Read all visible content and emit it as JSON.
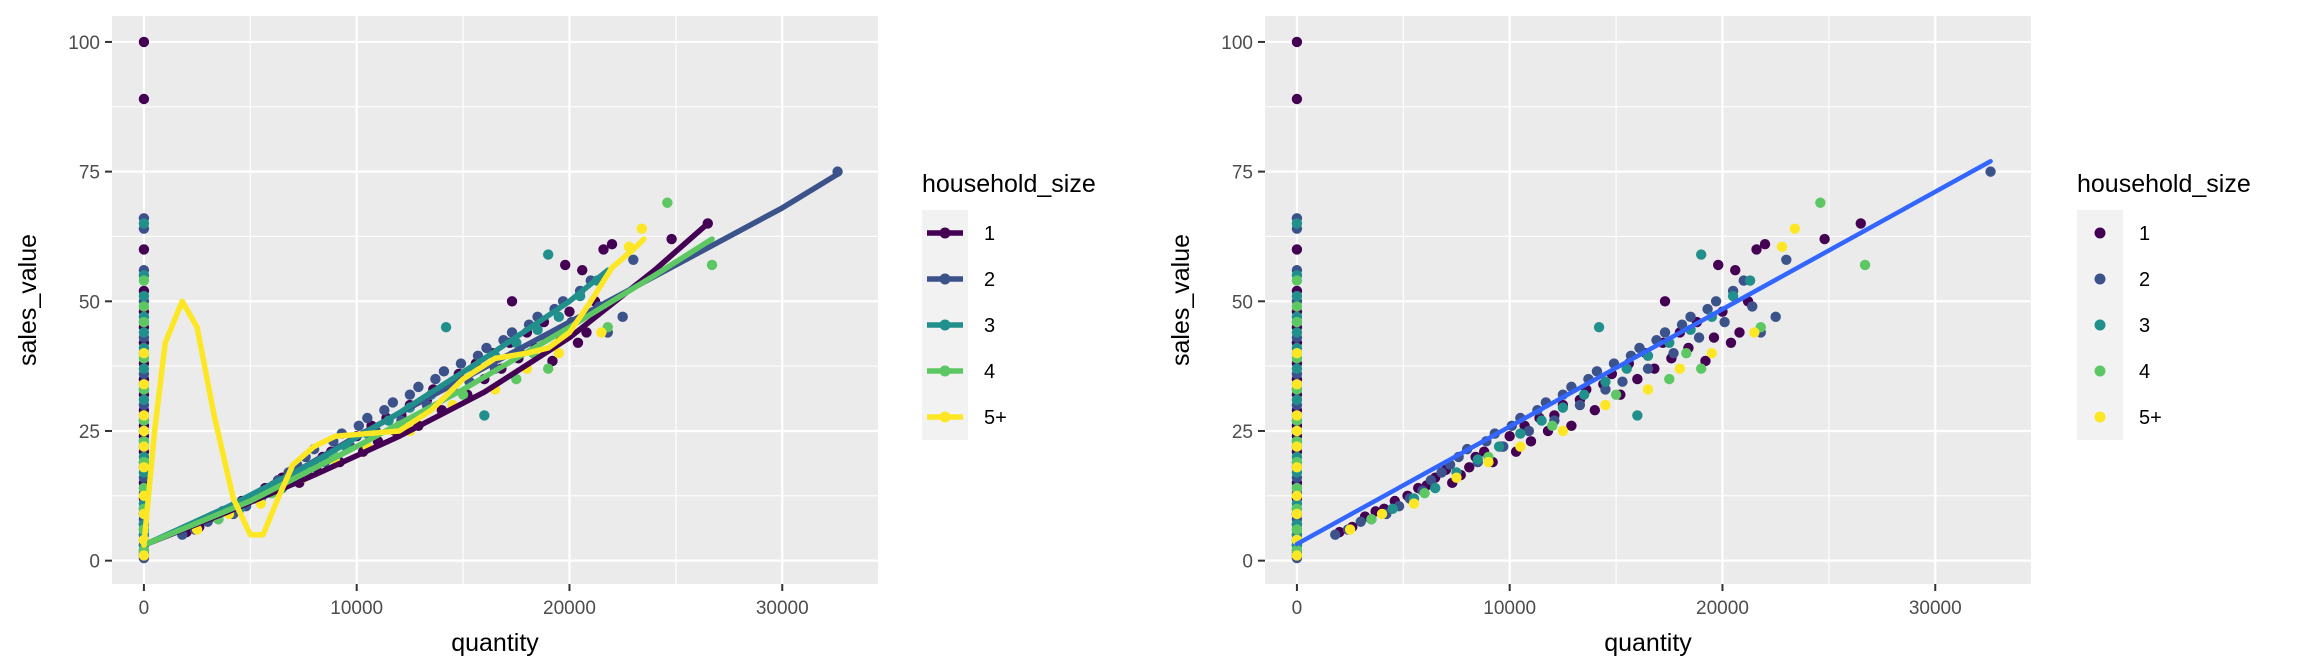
{
  "colors": {
    "panel": "#EBEBEB",
    "grid": "#FFFFFF",
    "tick": "#333333",
    "fit_line": "#3366FF",
    "legend_key_bg": "#F2F2F2",
    "groups": {
      "1": "#440154",
      "2": "#3B528B",
      "3": "#21908C",
      "4": "#5DC863",
      "5+": "#FDE725"
    }
  },
  "chart_data": [
    {
      "type": "scatter",
      "title": "",
      "xlabel": "quantity",
      "ylabel": "sales_value",
      "xlim": [
        -1500,
        34500
      ],
      "ylim": [
        -4.5,
        105
      ],
      "x_ticks": [
        0,
        10000,
        20000,
        30000
      ],
      "x_tick_labels": [
        "0",
        "10000",
        "20000",
        "30000"
      ],
      "y_ticks": [
        0,
        25,
        50,
        75,
        100
      ],
      "y_tick_labels": [
        "0",
        "25",
        "50",
        "75",
        "100"
      ],
      "grid": true,
      "legend": {
        "title": "household_size",
        "placement": "right",
        "keys": "point-and-line",
        "entries": [
          "1",
          "2",
          "3",
          "4",
          "5+"
        ]
      },
      "series": [
        {
          "name": "1",
          "lines": [
            [
              0,
              3
            ],
            [
              4000,
              9.5
            ],
            [
              8000,
              16.5
            ],
            [
              12000,
              24
            ],
            [
              16000,
              32.5
            ],
            [
              20000,
              43
            ],
            [
              24000,
              56
            ],
            [
              26500,
              65
            ]
          ]
        },
        {
          "name": "2",
          "lines": [
            [
              0,
              3
            ],
            [
              5000,
              12
            ],
            [
              10000,
              24
            ],
            [
              15000,
              35
            ],
            [
              20000,
              46
            ],
            [
              25000,
              57
            ],
            [
              30000,
              68
            ],
            [
              32600,
              74.5
            ]
          ]
        },
        {
          "name": "3",
          "lines": [
            [
              0,
              3
            ],
            [
              4000,
              10.5
            ],
            [
              8000,
              19
            ],
            [
              12000,
              28.5
            ],
            [
              16000,
              39
            ],
            [
              20000,
              50
            ],
            [
              21800,
              56
            ]
          ]
        },
        {
          "name": "4",
          "lines": [
            [
              0,
              3
            ],
            [
              5000,
              11.5
            ],
            [
              10000,
              22
            ],
            [
              15000,
              33
            ],
            [
              20000,
              45
            ],
            [
              24000,
              55
            ],
            [
              26700,
              62
            ]
          ]
        },
        {
          "name": "5+",
          "lines": [
            [
              0,
              3
            ],
            [
              500,
              25
            ],
            [
              1000,
              42
            ],
            [
              1800,
              50
            ],
            [
              2500,
              45
            ],
            [
              3300,
              28
            ],
            [
              4200,
              12
            ],
            [
              5000,
              5
            ],
            [
              5600,
              5
            ],
            [
              6300,
              12
            ],
            [
              7000,
              18.5
            ],
            [
              8000,
              22
            ],
            [
              9000,
              24
            ],
            [
              10500,
              24.5
            ],
            [
              12000,
              25
            ],
            [
              13500,
              29
            ],
            [
              15000,
              35
            ],
            [
              16500,
              39
            ],
            [
              18000,
              40
            ],
            [
              19000,
              41
            ],
            [
              20000,
              44
            ],
            [
              21000,
              50
            ],
            [
              22000,
              56.5
            ],
            [
              23000,
              60
            ],
            [
              23500,
              62
            ]
          ]
        }
      ]
    },
    {
      "type": "scatter",
      "title": "",
      "xlabel": "quantity",
      "ylabel": "sales_value",
      "xlim": [
        -1500,
        34500
      ],
      "ylim": [
        -4.5,
        105
      ],
      "x_ticks": [
        0,
        10000,
        20000,
        30000
      ],
      "x_tick_labels": [
        "0",
        "10000",
        "20000",
        "30000"
      ],
      "y_ticks": [
        0,
        25,
        50,
        75,
        100
      ],
      "y_tick_labels": [
        "0",
        "25",
        "50",
        "75",
        "100"
      ],
      "grid": true,
      "legend": {
        "title": "household_size",
        "placement": "right",
        "keys": "point",
        "entries": [
          "1",
          "2",
          "3",
          "4",
          "5+"
        ]
      },
      "fit_line": [
        [
          0,
          3.2
        ],
        [
          32600,
          77
        ]
      ]
    }
  ],
  "scatter_points": {
    "zero_column": [
      {
        "group": "1",
        "y": [
          100,
          89,
          60,
          52,
          48,
          45,
          42,
          38,
          35,
          32,
          29,
          26,
          24,
          21,
          18,
          15,
          12,
          9,
          7,
          5,
          3,
          1
        ]
      },
      {
        "group": "2",
        "y": [
          66,
          64,
          56,
          50,
          46,
          43,
          40,
          36,
          33,
          30,
          27,
          25,
          22,
          19,
          16,
          13,
          10,
          8,
          6,
          4,
          2,
          0.5
        ]
      },
      {
        "group": "3",
        "y": [
          65,
          55,
          51,
          47,
          44,
          41,
          37,
          34,
          31,
          28,
          25,
          23,
          20,
          17,
          14,
          11,
          9,
          7,
          5,
          3,
          1.5
        ]
      },
      {
        "group": "4",
        "y": [
          54,
          49,
          46,
          39,
          33,
          27,
          23,
          19,
          14,
          10,
          6,
          2
        ]
      },
      {
        "group": "5+",
        "y": [
          40,
          34,
          28,
          25,
          22,
          18,
          12.5,
          9,
          4,
          1
        ]
      }
    ],
    "scatter": [
      {
        "group": "1",
        "points": [
          [
            2000,
            5.5
          ],
          [
            2600,
            6.5
          ],
          [
            3200,
            8.5
          ],
          [
            3700,
            9.5
          ],
          [
            4100,
            10
          ],
          [
            4600,
            11.5
          ],
          [
            5200,
            12.5
          ],
          [
            5700,
            14
          ],
          [
            6100,
            14.5
          ],
          [
            6500,
            16
          ],
          [
            7000,
            17.5
          ],
          [
            7300,
            15
          ],
          [
            7700,
            16.5
          ],
          [
            8100,
            18
          ],
          [
            8400,
            20
          ],
          [
            8800,
            21
          ],
          [
            9200,
            19
          ],
          [
            9600,
            22
          ],
          [
            10000,
            24
          ],
          [
            10300,
            21
          ],
          [
            10700,
            26
          ],
          [
            11000,
            23
          ],
          [
            11400,
            27.5
          ],
          [
            11800,
            25
          ],
          [
            12100,
            28
          ],
          [
            12500,
            30
          ],
          [
            12900,
            26
          ],
          [
            13300,
            31
          ],
          [
            13600,
            33
          ],
          [
            14000,
            29
          ],
          [
            14400,
            34
          ],
          [
            14800,
            36
          ],
          [
            15200,
            32
          ],
          [
            15600,
            38
          ],
          [
            16000,
            35
          ],
          [
            16400,
            40
          ],
          [
            16800,
            37
          ],
          [
            17200,
            42
          ],
          [
            17600,
            39
          ],
          [
            18000,
            44
          ],
          [
            18400,
            41
          ],
          [
            18800,
            46
          ],
          [
            19200,
            38.5
          ],
          [
            19600,
            43
          ],
          [
            20000,
            48
          ],
          [
            20400,
            42
          ],
          [
            20800,
            44
          ],
          [
            21200,
            50
          ],
          [
            21600,
            60
          ],
          [
            22000,
            61
          ],
          [
            20600,
            56
          ],
          [
            19800,
            57
          ],
          [
            17300,
            50
          ],
          [
            26500,
            65
          ],
          [
            24800,
            62
          ]
        ]
      },
      {
        "group": "2",
        "points": [
          [
            1800,
            5
          ],
          [
            2400,
            6
          ],
          [
            3000,
            7.5
          ],
          [
            3500,
            8
          ],
          [
            4200,
            9
          ],
          [
            4800,
            10.5
          ],
          [
            5300,
            12
          ],
          [
            5900,
            13.5
          ],
          [
            6300,
            15.5
          ],
          [
            6800,
            17
          ],
          [
            7200,
            18.5
          ],
          [
            7600,
            20
          ],
          [
            8000,
            21.5
          ],
          [
            8500,
            19
          ],
          [
            8900,
            23
          ],
          [
            9300,
            24.5
          ],
          [
            9700,
            22
          ],
          [
            10100,
            26
          ],
          [
            10500,
            27.5
          ],
          [
            10900,
            25
          ],
          [
            11300,
            29
          ],
          [
            11700,
            30.5
          ],
          [
            12100,
            27
          ],
          [
            12500,
            32
          ],
          [
            12900,
            33.5
          ],
          [
            13300,
            30
          ],
          [
            13700,
            35
          ],
          [
            14100,
            36.5
          ],
          [
            14500,
            33
          ],
          [
            14900,
            38
          ],
          [
            15300,
            34.5
          ],
          [
            15700,
            39.5
          ],
          [
            16100,
            41
          ],
          [
            16500,
            37
          ],
          [
            16900,
            42.5
          ],
          [
            17300,
            44
          ],
          [
            17700,
            40
          ],
          [
            18100,
            45.5
          ],
          [
            18500,
            47
          ],
          [
            18900,
            43
          ],
          [
            19300,
            48.5
          ],
          [
            19700,
            50
          ],
          [
            20100,
            46
          ],
          [
            20500,
            52
          ],
          [
            21000,
            54
          ],
          [
            21400,
            49
          ],
          [
            22500,
            47
          ],
          [
            23000,
            58
          ],
          [
            21800,
            44
          ],
          [
            32600,
            75
          ]
        ]
      },
      {
        "group": "3",
        "points": [
          [
            4500,
            10
          ],
          [
            5500,
            12
          ],
          [
            6500,
            14
          ],
          [
            7500,
            17
          ],
          [
            8500,
            19.5
          ],
          [
            9500,
            22
          ],
          [
            10500,
            24.5
          ],
          [
            11500,
            27
          ],
          [
            12500,
            29.5
          ],
          [
            13500,
            32
          ],
          [
            14500,
            34.5
          ],
          [
            15500,
            37
          ],
          [
            16500,
            39.5
          ],
          [
            17500,
            42
          ],
          [
            18500,
            44.5
          ],
          [
            19500,
            47
          ],
          [
            20500,
            51
          ],
          [
            21300,
            54
          ],
          [
            19000,
            59
          ],
          [
            14200,
            45
          ],
          [
            16000,
            28
          ]
        ]
      },
      {
        "group": "4",
        "points": [
          [
            3500,
            8
          ],
          [
            6000,
            13
          ],
          [
            9000,
            20
          ],
          [
            12000,
            26
          ],
          [
            15000,
            32
          ],
          [
            17500,
            35
          ],
          [
            18300,
            40
          ],
          [
            19000,
            37
          ],
          [
            21800,
            45
          ],
          [
            24600,
            69
          ],
          [
            26700,
            57
          ]
        ]
      },
      {
        "group": "5+",
        "points": [
          [
            2500,
            6
          ],
          [
            4000,
            9
          ],
          [
            5500,
            11
          ],
          [
            7500,
            16
          ],
          [
            9000,
            19
          ],
          [
            10500,
            22
          ],
          [
            12500,
            25
          ],
          [
            14500,
            30
          ],
          [
            16500,
            33
          ],
          [
            18000,
            37
          ],
          [
            19500,
            40
          ],
          [
            21500,
            44
          ],
          [
            22800,
            60.5
          ],
          [
            23400,
            64
          ]
        ]
      }
    ]
  }
}
